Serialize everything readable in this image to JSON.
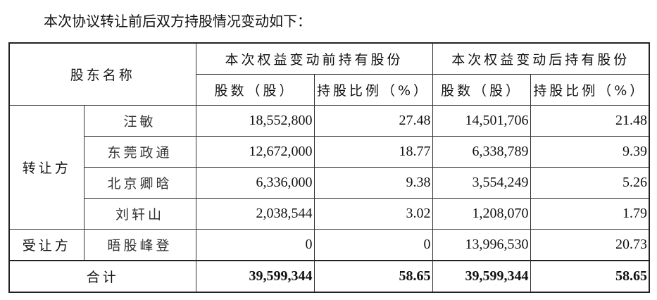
{
  "intro": "本次协议转让前后双方持股情况变动如下：",
  "headers": {
    "name": "股东名称",
    "before": "本次权益变动前持有股份",
    "after": "本次权益变动后持有股份",
    "shares": "股数（股）",
    "ratio": "持股比例（%）"
  },
  "groups": {
    "transferor": "转让方",
    "transferee": "受让方"
  },
  "rows": [
    {
      "name": "汪敏",
      "before_shares": "18,552,800",
      "before_ratio": "27.48",
      "after_shares": "14,501,706",
      "after_ratio": "21.48"
    },
    {
      "name": "东莞政通",
      "before_shares": "12,672,000",
      "before_ratio": "18.77",
      "after_shares": "6,338,789",
      "after_ratio": "9.39"
    },
    {
      "name": "北京卿晗",
      "before_shares": "6,336,000",
      "before_ratio": "9.38",
      "after_shares": "3,554,249",
      "after_ratio": "5.26"
    },
    {
      "name": "刘轩山",
      "before_shares": "2,038,544",
      "before_ratio": "3.02",
      "after_shares": "1,208,070",
      "after_ratio": "1.79"
    },
    {
      "name": "晤股峰登",
      "before_shares": "0",
      "before_ratio": "0",
      "after_shares": "13,996,530",
      "after_ratio": "20.73"
    }
  ],
  "total": {
    "label": "合计",
    "before_shares": "39,599,344",
    "before_ratio": "58.65",
    "after_shares": "39,599,344",
    "after_ratio": "58.65"
  }
}
